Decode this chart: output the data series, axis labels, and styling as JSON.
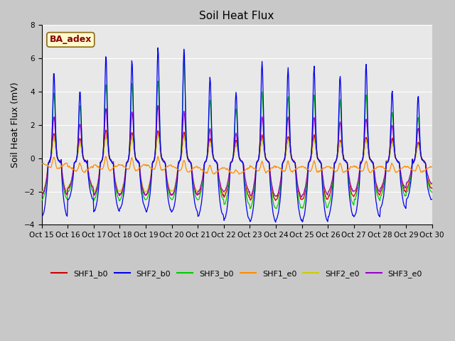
{
  "title": "Soil Heat Flux",
  "ylabel": "Soil Heat Flux (mV)",
  "ylim": [
    -4,
    8
  ],
  "yticks": [
    -4,
    -2,
    0,
    2,
    4,
    6,
    8
  ],
  "xlim": [
    0,
    15
  ],
  "xtick_labels": [
    "Oct 15",
    "Oct 16",
    "Oct 17",
    "Oct 18",
    "Oct 19",
    "Oct 20",
    "Oct 21",
    "Oct 22",
    "Oct 23",
    "Oct 24",
    "Oct 25",
    "Oct 26",
    "Oct 27",
    "Oct 28",
    "Oct 29",
    "Oct 30"
  ],
  "annotation_text": "BA_adex",
  "annotation_color": "#8B0000",
  "annotation_bg": "#FFFACD",
  "fig_bg": "#C8C8C8",
  "plot_bg": "#E8E8E8",
  "legend": [
    "SHF1_b0",
    "SHF2_b0",
    "SHF3_b0",
    "SHF1_e0",
    "SHF2_e0",
    "SHF3_e0"
  ],
  "line_colors": [
    "#CC0000",
    "#0000EE",
    "#00CC00",
    "#FF8C00",
    "#CCCC00",
    "#9900CC"
  ],
  "series_count": 6
}
